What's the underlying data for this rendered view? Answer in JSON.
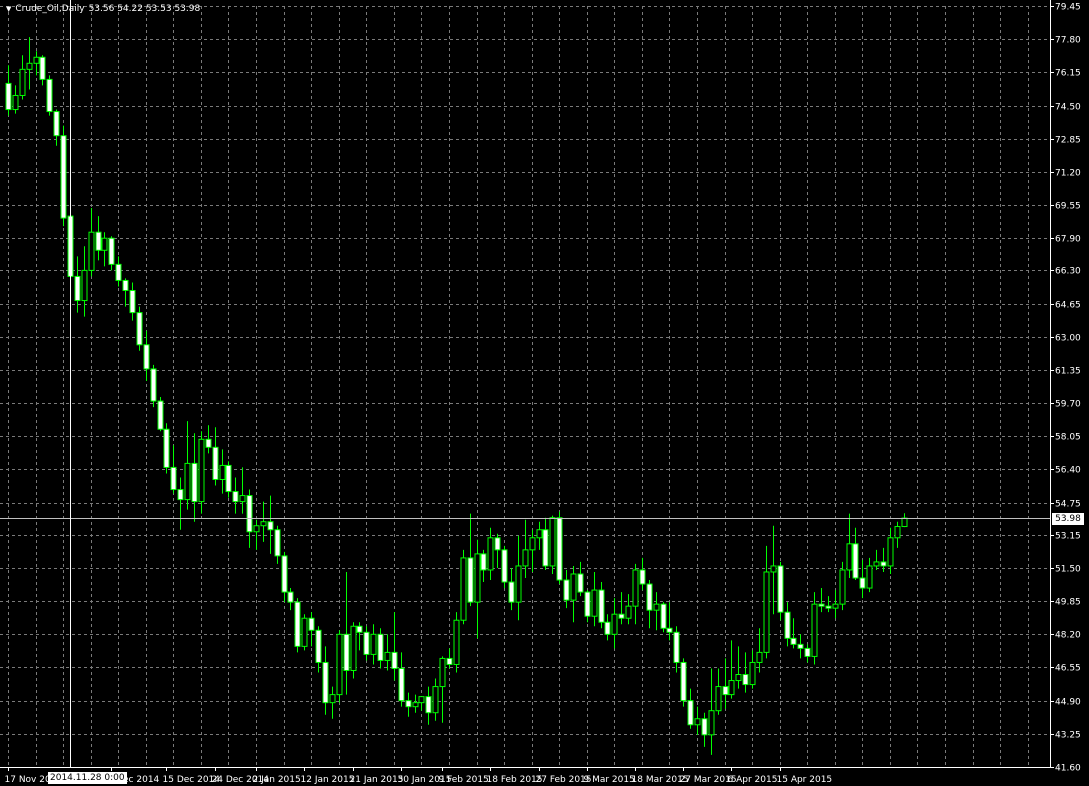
{
  "header": {
    "symbol": "Crude_Oil,Daily",
    "ohlc": "53.56 54.22 53.53 53.98"
  },
  "cursor": {
    "time_label": "2014.11.28 0:00"
  },
  "colors": {
    "background": "#000000",
    "grid": "#7a7a7a",
    "axis": "#ffffff",
    "bull_body": "#000000",
    "bear_body": "#ffffff",
    "candle_outline": "#00ff00",
    "wick": "#00ff00",
    "text": "#ffffff"
  },
  "chart_data": {
    "type": "candlestick",
    "title": "Crude_Oil,Daily",
    "current_price": 53.98,
    "current_price_label": "53.98",
    "ylim": [
      41.6,
      79.45
    ],
    "y_ticks": [
      "79.45",
      "77.80",
      "76.15",
      "74.50",
      "72.85",
      "71.20",
      "69.55",
      "67.90",
      "66.30",
      "64.65",
      "63.00",
      "61.35",
      "59.70",
      "58.05",
      "56.40",
      "54.75",
      "53.15",
      "51.50",
      "49.85",
      "48.20",
      "46.55",
      "44.90",
      "43.25",
      "41.60"
    ],
    "x_ticks": [
      {
        "label": "17 Nov 20",
        "index": 0
      },
      {
        "label": "5 Dec 2014",
        "index": 15
      },
      {
        "label": "15 Dec 2014",
        "index": 23
      },
      {
        "label": "24 Dec 2014",
        "index": 30
      },
      {
        "label": "2 Jan 2015",
        "index": 36
      },
      {
        "label": "12 Jan 2015",
        "index": 43
      },
      {
        "label": "21 Jan 2015",
        "index": 50
      },
      {
        "label": "30 Jan 2015",
        "index": 57
      },
      {
        "label": "9 Feb 2015",
        "index": 63
      },
      {
        "label": "18 Feb 2015",
        "index": 70
      },
      {
        "label": "27 Feb 2015",
        "index": 77
      },
      {
        "label": "9 Mar 2015",
        "index": 84
      },
      {
        "label": "18 Mar 2015",
        "index": 91
      },
      {
        "label": "27 Mar 2015",
        "index": 98
      },
      {
        "label": "6 Apr 2015",
        "index": 105
      },
      {
        "label": "15 Apr 2015",
        "index": 112
      }
    ],
    "cursor_index": 9,
    "grid": true,
    "candles": [
      [
        75.6,
        76.5,
        74.0,
        74.3
      ],
      [
        74.3,
        75.5,
        74.1,
        75.0
      ],
      [
        75.0,
        77.0,
        74.8,
        76.3
      ],
      [
        76.3,
        77.9,
        75.3,
        76.6
      ],
      [
        76.6,
        77.2,
        76.0,
        76.9
      ],
      [
        76.9,
        77.0,
        75.5,
        75.8
      ],
      [
        75.8,
        76.0,
        74.0,
        74.2
      ],
      [
        74.2,
        74.3,
        72.5,
        73.0
      ],
      [
        73.0,
        73.5,
        68.5,
        68.9
      ],
      [
        69.0,
        69.2,
        65.5,
        66.0
      ],
      [
        66.0,
        67.0,
        64.2,
        64.8
      ],
      [
        64.8,
        67.5,
        64.0,
        66.3
      ],
      [
        66.3,
        69.4,
        66.0,
        68.2
      ],
      [
        68.2,
        69.0,
        66.8,
        67.3
      ],
      [
        67.3,
        68.2,
        66.5,
        67.9
      ],
      [
        67.9,
        68.0,
        66.3,
        66.6
      ],
      [
        66.6,
        67.0,
        65.5,
        65.8
      ],
      [
        65.8,
        65.9,
        64.5,
        65.3
      ],
      [
        65.3,
        65.7,
        63.8,
        64.2
      ],
      [
        64.2,
        64.5,
        62.3,
        62.6
      ],
      [
        62.6,
        63.3,
        60.8,
        61.4
      ],
      [
        61.4,
        61.6,
        59.5,
        59.8
      ],
      [
        59.8,
        60.0,
        58.3,
        58.4
      ],
      [
        58.4,
        58.7,
        56.2,
        56.5
      ],
      [
        56.5,
        57.6,
        55.2,
        55.4
      ],
      [
        55.4,
        56.0,
        53.4,
        54.9
      ],
      [
        54.9,
        58.8,
        54.4,
        56.7
      ],
      [
        56.7,
        58.2,
        53.8,
        54.8
      ],
      [
        54.8,
        58.3,
        54.2,
        57.9
      ],
      [
        57.9,
        58.6,
        57.2,
        57.5
      ],
      [
        57.5,
        58.5,
        55.6,
        55.9
      ],
      [
        55.9,
        57.4,
        55.2,
        56.6
      ],
      [
        56.6,
        56.8,
        55.0,
        55.3
      ],
      [
        55.3,
        56.0,
        54.2,
        54.8
      ],
      [
        54.8,
        56.5,
        54.2,
        55.1
      ],
      [
        55.1,
        55.4,
        52.5,
        53.3
      ],
      [
        53.3,
        53.9,
        52.4,
        53.6
      ],
      [
        53.6,
        54.8,
        52.8,
        53.8
      ],
      [
        53.8,
        55.1,
        52.2,
        53.4
      ],
      [
        53.4,
        53.6,
        51.7,
        52.1
      ],
      [
        52.1,
        52.3,
        49.8,
        50.3
      ],
      [
        50.3,
        50.5,
        49.4,
        49.8
      ],
      [
        49.8,
        50.0,
        47.3,
        47.6
      ],
      [
        47.6,
        49.2,
        47.4,
        49.0
      ],
      [
        49.0,
        49.3,
        47.6,
        48.4
      ],
      [
        48.4,
        48.6,
        46.3,
        46.8
      ],
      [
        46.8,
        47.6,
        44.2,
        44.8
      ],
      [
        44.8,
        45.6,
        44.0,
        45.2
      ],
      [
        45.2,
        48.4,
        44.8,
        48.2
      ],
      [
        48.2,
        51.3,
        45.2,
        46.4
      ],
      [
        46.4,
        48.8,
        46.0,
        48.6
      ],
      [
        48.6,
        48.8,
        47.4,
        48.3
      ],
      [
        48.3,
        48.6,
        46.9,
        47.2
      ],
      [
        47.2,
        48.7,
        46.7,
        48.2
      ],
      [
        48.2,
        48.5,
        46.5,
        46.9
      ],
      [
        46.9,
        48.2,
        46.4,
        47.3
      ],
      [
        47.3,
        49.3,
        45.9,
        46.5
      ],
      [
        46.5,
        47.3,
        44.6,
        44.9
      ],
      [
        44.9,
        45.3,
        44.1,
        44.6
      ],
      [
        44.6,
        45.2,
        44.3,
        44.8
      ],
      [
        44.8,
        45.1,
        44.4,
        45.1
      ],
      [
        45.1,
        45.6,
        43.7,
        44.3
      ],
      [
        44.3,
        46.0,
        43.9,
        45.6
      ],
      [
        45.6,
        47.1,
        43.8,
        47.0
      ],
      [
        47.0,
        47.5,
        46.5,
        46.7
      ],
      [
        46.7,
        49.3,
        46.3,
        48.9
      ],
      [
        48.9,
        52.4,
        48.7,
        52.0
      ],
      [
        52.0,
        54.2,
        49.6,
        49.8
      ],
      [
        49.8,
        52.9,
        48.0,
        52.2
      ],
      [
        52.2,
        52.4,
        50.8,
        51.4
      ],
      [
        51.4,
        53.5,
        50.9,
        53.0
      ],
      [
        53.0,
        53.2,
        51.5,
        52.4
      ],
      [
        52.4,
        52.6,
        50.5,
        50.8
      ],
      [
        50.8,
        51.5,
        49.4,
        49.8
      ],
      [
        49.8,
        53.1,
        48.9,
        51.6
      ],
      [
        51.6,
        53.9,
        51.0,
        52.4
      ],
      [
        52.4,
        53.4,
        51.3,
        53.0
      ],
      [
        53.0,
        53.8,
        52.4,
        53.4
      ],
      [
        53.4,
        54.0,
        51.4,
        51.6
      ],
      [
        51.6,
        54.1,
        51.2,
        54.0
      ],
      [
        54.0,
        54.3,
        50.7,
        50.9
      ],
      [
        50.9,
        51.4,
        49.5,
        49.9
      ],
      [
        49.9,
        51.6,
        48.8,
        51.2
      ],
      [
        51.2,
        51.8,
        50.1,
        50.3
      ],
      [
        50.3,
        50.4,
        48.8,
        49.1
      ],
      [
        49.1,
        51.3,
        48.6,
        50.4
      ],
      [
        50.4,
        50.8,
        48.5,
        48.8
      ],
      [
        48.8,
        49.2,
        47.9,
        48.2
      ],
      [
        48.2,
        50.0,
        47.5,
        49.2
      ],
      [
        49.2,
        50.3,
        48.7,
        49.0
      ],
      [
        49.0,
        50.2,
        48.7,
        49.6
      ],
      [
        49.6,
        51.7,
        48.7,
        51.4
      ],
      [
        51.4,
        52.0,
        50.4,
        50.7
      ],
      [
        50.7,
        50.9,
        48.5,
        49.4
      ],
      [
        49.4,
        50.3,
        48.4,
        49.7
      ],
      [
        49.7,
        49.8,
        48.3,
        48.5
      ],
      [
        48.5,
        49.8,
        47.9,
        48.3
      ],
      [
        48.3,
        48.6,
        46.3,
        46.8
      ],
      [
        46.8,
        47.0,
        44.6,
        44.9
      ],
      [
        44.9,
        45.5,
        43.5,
        43.7
      ],
      [
        43.7,
        44.6,
        43.2,
        44.0
      ],
      [
        44.0,
        44.3,
        42.6,
        43.2
      ],
      [
        43.2,
        46.5,
        42.2,
        44.4
      ],
      [
        44.4,
        46.5,
        44.2,
        45.6
      ],
      [
        45.6,
        47.0,
        44.5,
        45.2
      ],
      [
        45.2,
        47.9,
        45.0,
        45.9
      ],
      [
        45.9,
        47.6,
        45.5,
        46.2
      ],
      [
        46.2,
        47.3,
        45.3,
        45.7
      ],
      [
        45.7,
        47.4,
        45.5,
        46.8
      ],
      [
        46.8,
        48.5,
        46.3,
        47.3
      ],
      [
        47.3,
        52.6,
        47.0,
        51.3
      ],
      [
        51.3,
        53.6,
        49.2,
        51.6
      ],
      [
        51.6,
        51.8,
        48.9,
        49.3
      ],
      [
        49.3,
        49.8,
        47.6,
        48.0
      ],
      [
        48.0,
        49.0,
        47.5,
        47.7
      ],
      [
        47.7,
        48.2,
        47.0,
        47.5
      ],
      [
        47.5,
        47.7,
        46.8,
        47.1
      ],
      [
        47.1,
        50.3,
        46.7,
        49.7
      ],
      [
        49.7,
        50.5,
        49.3,
        49.6
      ],
      [
        49.6,
        50.1,
        49.3,
        49.5
      ],
      [
        49.5,
        50.4,
        49.0,
        49.7
      ],
      [
        49.7,
        51.8,
        49.4,
        51.4
      ],
      [
        51.4,
        54.2,
        51.0,
        52.7
      ],
      [
        52.7,
        53.5,
        50.9,
        51.0
      ],
      [
        51.0,
        51.9,
        50.0,
        50.5
      ],
      [
        50.5,
        52.0,
        50.3,
        51.6
      ],
      [
        51.6,
        52.4,
        51.4,
        51.8
      ],
      [
        51.8,
        52.5,
        51.3,
        51.6
      ],
      [
        51.6,
        53.5,
        51.2,
        53.0
      ],
      [
        53.0,
        53.8,
        52.5,
        53.56
      ],
      [
        53.56,
        54.22,
        53.53,
        53.98
      ]
    ]
  }
}
